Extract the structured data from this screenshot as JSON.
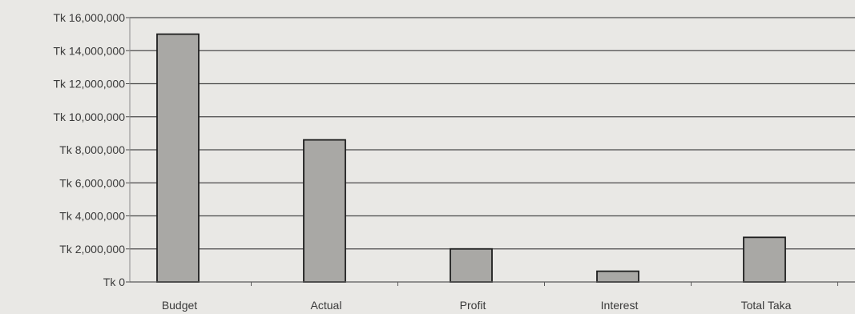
{
  "chart_data": {
    "type": "bar",
    "categories": [
      "Budget",
      "Actual",
      "Profit",
      "Interest",
      "Total Taka"
    ],
    "values": [
      15000000,
      8600000,
      2000000,
      650000,
      2700000
    ],
    "yticks": [
      "Tk 0",
      "Tk 2,000,000",
      "Tk 4,000,000",
      "Tk 6,000,000",
      "Tk 8,000,000",
      "Tk 10,000,000",
      "Tk 12,000,000",
      "Tk 14,000,000",
      "Tk 16,000,000"
    ],
    "ylim": [
      0,
      16000000
    ],
    "grid": true,
    "legend": "none",
    "colors": {
      "bar": "#a9a8a5",
      "bar_edge": "#1e1e1e",
      "grid": "#4a4a4a",
      "background": "#e9e8e5",
      "text": "#3a3a3a"
    }
  }
}
